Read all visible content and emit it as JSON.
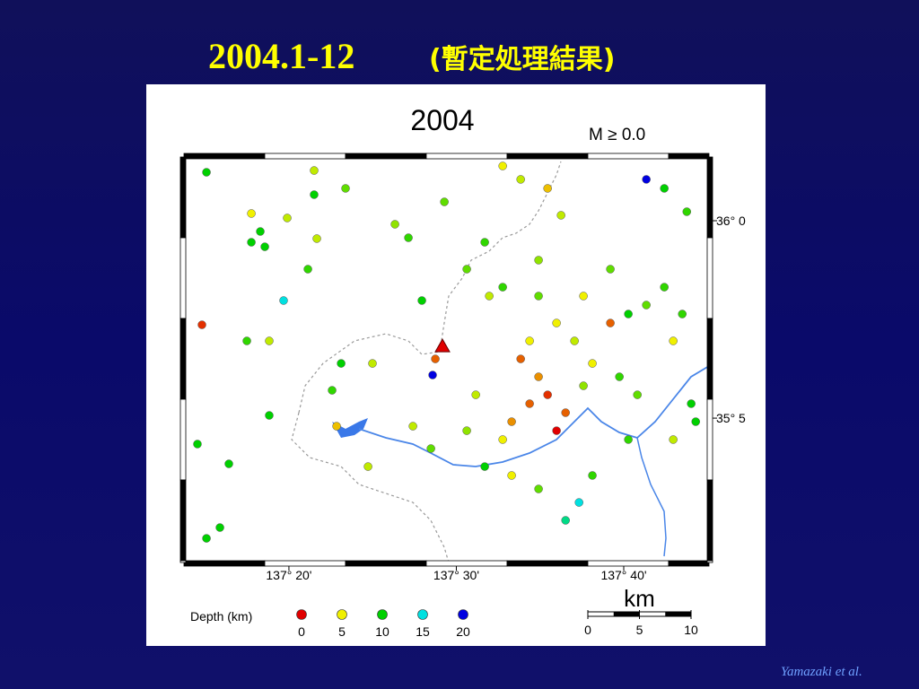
{
  "title": {
    "main": "2004.1-12",
    "sub": "(暫定処理結果)"
  },
  "map": {
    "title": "2004",
    "magnitude_label": "M ≥ 0.0",
    "xlim": [
      137.2288,
      137.7516
    ],
    "ylim": [
      35.7114,
      36.0538
    ],
    "xticks": [
      {
        "value": 137.3333,
        "label": "137° 20'"
      },
      {
        "value": 137.5,
        "label": "137° 30'"
      },
      {
        "value": 137.6667,
        "label": "137° 40'"
      }
    ],
    "yticks": [
      {
        "value": 36.0,
        "label": "36° 0"
      },
      {
        "value": 35.8333,
        "label": "35° 5"
      }
    ],
    "events": {
      "lon": [
        137.2512,
        137.2959,
        137.3048,
        137.3093,
        137.3316,
        137.3611,
        137.3522,
        137.3584,
        137.3897,
        137.4389,
        137.4523,
        137.4881,
        137.5104,
        137.5328,
        137.5462,
        137.5819,
        137.5641,
        137.5462,
        137.5909,
        137.6043,
        137.6266,
        137.6534,
        137.6713,
        137.6892,
        137.7071,
        137.725,
        137.716,
        137.2467,
        137.2914,
        137.3137,
        137.3853,
        137.4165,
        137.4791,
        137.4764,
        137.5819,
        137.5909,
        137.573,
        137.6088,
        137.5551,
        137.5998,
        137.6266,
        137.6624,
        137.6803,
        137.7339,
        137.5194,
        137.5104,
        137.5462,
        137.4568,
        137.4747,
        137.4121,
        137.5551,
        137.5819,
        137.5283,
        137.6355,
        137.6088,
        137.6222,
        137.6892,
        137.7071,
        137.7295,
        137.2512,
        137.2646,
        137.2735,
        137.2422,
        137.3137,
        137.3763,
        137.3808,
        137.6177,
        137.5998,
        137.573,
        137.5641,
        137.6355,
        137.6713,
        137.716,
        137.7384,
        137.5819,
        137.6534,
        137.5283,
        137.3584,
        137.2959,
        137.328,
        137.4657
      ],
      "lat": [
        36.0409,
        36.0061,
        35.9909,
        35.978,
        36.0023,
        35.9849,
        35.9591,
        36.0424,
        36.0273,
        35.997,
        35.9856,
        36.0159,
        35.9591,
        35.9364,
        35.9439,
        35.9667,
        36.0349,
        36.0462,
        36.0273,
        36.0046,
        35.9364,
        35.9136,
        35.9212,
        35.9288,
        35.9439,
        35.9212,
        35.8985,
        35.9121,
        35.8985,
        35.8985,
        35.8795,
        35.8795,
        35.8833,
        35.8697,
        35.8682,
        35.853,
        35.8455,
        35.8379,
        35.8303,
        35.8227,
        35.8606,
        35.8682,
        35.853,
        35.8455,
        35.853,
        35.8227,
        35.8152,
        35.8265,
        35.8076,
        35.7924,
        35.7849,
        35.7735,
        35.7924,
        35.7849,
        35.747,
        35.7621,
        36.0349,
        36.0273,
        36.0076,
        35.7318,
        35.7409,
        35.7947,
        35.8114,
        35.8356,
        35.8568,
        35.8265,
        35.8985,
        35.9136,
        35.8985,
        35.8833,
        35.8795,
        35.8152,
        35.8152,
        35.8303,
        35.9364,
        35.9591,
        35.9818,
        36.022,
        35.9818,
        35.9326,
        35.9326
      ],
      "depth": [
        10,
        5,
        10,
        10,
        6,
        6,
        9,
        6,
        8,
        7,
        9,
        8,
        8,
        6,
        9,
        7,
        6,
        5,
        4,
        6,
        5,
        2,
        10,
        8,
        9,
        9,
        5,
        1,
        9,
        6,
        10,
        6,
        2,
        20,
        3,
        1,
        2,
        2,
        3,
        0,
        7,
        9,
        8,
        10,
        6,
        7,
        5,
        6,
        8,
        6,
        5,
        8,
        10,
        9,
        13,
        15,
        20,
        10,
        9,
        10,
        10,
        10,
        10,
        10,
        9,
        4,
        6,
        5,
        5,
        2,
        5,
        9,
        6,
        10,
        8,
        8,
        9,
        10,
        10,
        15,
        10
      ]
    },
    "volcano": {
      "lon": 137.4862,
      "lat": 35.8939,
      "color": "#e00000"
    },
    "legend": {
      "title": "Depth (km)",
      "depths": [
        0,
        5,
        10,
        15,
        20
      ],
      "colors": [
        "#e00000",
        "#f0f000",
        "#00d000",
        "#00e0e0",
        "#0000e0"
      ]
    },
    "scale": {
      "unit": "km",
      "ticks": [
        0,
        5,
        10
      ]
    }
  },
  "credit": "Yamazaki et al."
}
